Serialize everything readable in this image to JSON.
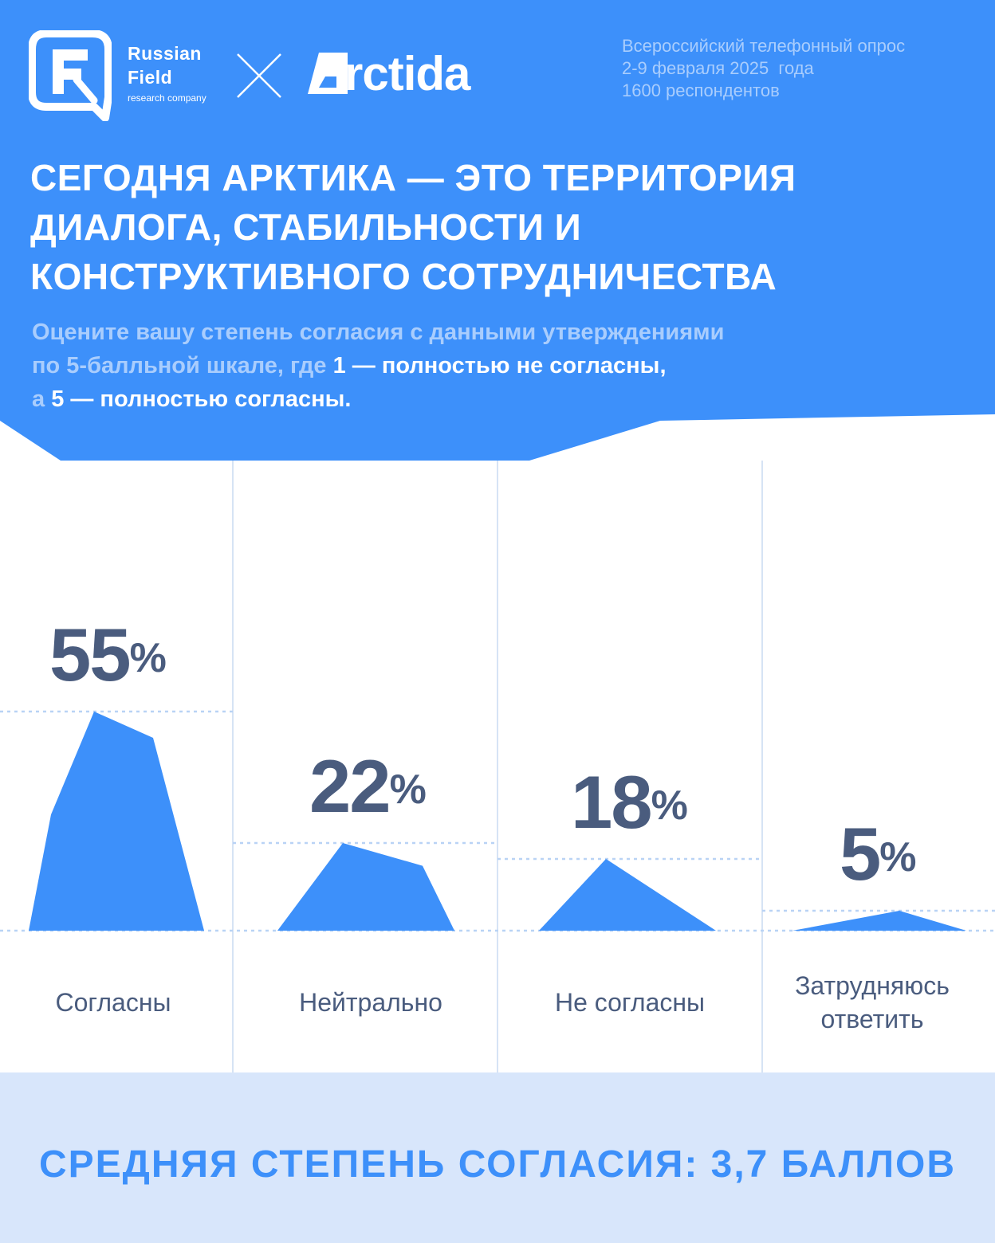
{
  "colors": {
    "brand_blue": "#3d90fa",
    "light_blue_text": "#a9cdfd",
    "dark_text": "#4a5c7e",
    "footer_bg": "#d8e6fb",
    "divider": "#d6e3f5"
  },
  "header": {
    "russian_field": {
      "line1": "Russian",
      "line2": "Field",
      "sub": "research company"
    },
    "partner_logo": "Arctida",
    "partner_word": "rctida",
    "survey_info": [
      "Всероссийский телефонный опрос",
      "2-9 февраля 2025  года",
      "1600 респондентов"
    ]
  },
  "headline": [
    "СЕГОДНЯ АРКТИКА — ЭТО ТЕРРИТОРИЯ",
    "ДИАЛОГА, СТАБИЛЬНОСТИ И",
    "КОНСТРУКТИВНОГО СОТРУДНИЧЕСТВА"
  ],
  "question": {
    "line1": "Оцените вашу степень согласия с данными утверждениями",
    "line2_plain": "по 5-балльной шкале, где ",
    "line2_bold": "1 — полностью не согласны,",
    "line3_plain": "а ",
    "line3_bold": "5 — полностью согласны."
  },
  "chart_data": {
    "type": "bar",
    "title": "",
    "categories": [
      "Согласны",
      "Нейтрально",
      "Не согласны",
      "Затрудняюсь ответить"
    ],
    "category_lines": [
      [
        "Согласны"
      ],
      [
        "Нейтрально"
      ],
      [
        "Не согласны"
      ],
      [
        "Затрудняюсь",
        "ответить"
      ]
    ],
    "values": [
      55,
      22,
      18,
      5
    ],
    "value_labels": [
      "55",
      "22",
      "18",
      "5"
    ],
    "unit": "%",
    "ylim": [
      0,
      55
    ],
    "xlabel": "",
    "ylabel": ""
  },
  "footer": {
    "text": "СРЕДНЯЯ СТЕПЕНЬ СОГЛАСИЯ: 3,7 БАЛЛОВ"
  }
}
